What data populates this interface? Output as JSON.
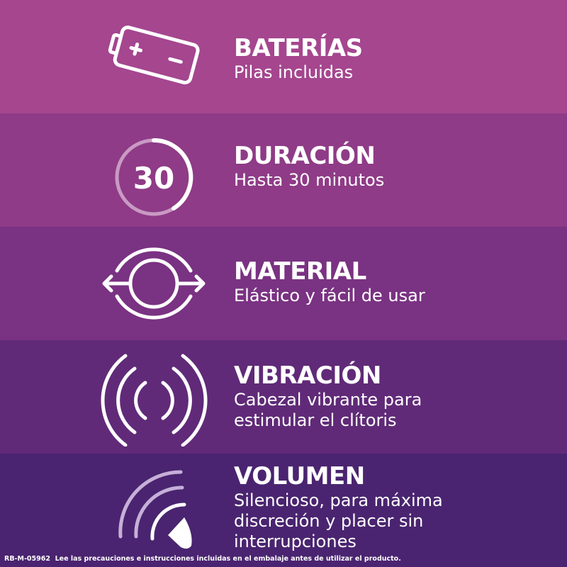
{
  "colors": {
    "row1": "#a5468f",
    "row2": "#8f3b87",
    "row3": "#7a3282",
    "row4": "#602a78",
    "row5": "#4a2470"
  },
  "features": [
    {
      "icon": "battery-icon",
      "title": "BATERÍAS",
      "lines": [
        "Pilas incluidas"
      ]
    },
    {
      "icon": "timer-30-icon",
      "title": "DURACIÓN",
      "lines": [
        "Hasta 30 minutos"
      ],
      "icon_text": "30"
    },
    {
      "icon": "stretch-circle-icon",
      "title": "MATERIAL",
      "lines": [
        "Elástico y fácil de usar"
      ]
    },
    {
      "icon": "vibration-icon",
      "title": "VIBRACIÓN",
      "lines": [
        "Cabezal vibrante para",
        "estimular el clítoris"
      ]
    },
    {
      "icon": "volume-icon",
      "title": "VOLUMEN",
      "lines": [
        "Silencioso, para máxima",
        "discreción y placer sin",
        "interrupciones"
      ]
    }
  ],
  "footer": {
    "code": "RB-M-05962",
    "notice": "Lee las precauciones e instrucciones incluidas en el embalaje antes de utilizar el producto."
  }
}
